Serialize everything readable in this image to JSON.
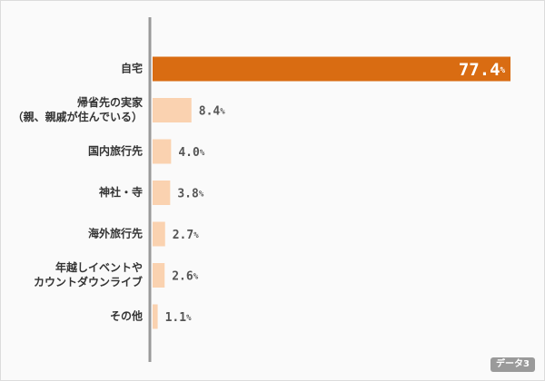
{
  "chart_data": {
    "type": "bar",
    "orientation": "horizontal",
    "categories": [
      [
        "自宅"
      ],
      [
        "帰省先の実家",
        "（親、親戚が住んでいる）"
      ],
      [
        "国内旅行先"
      ],
      [
        "神社・寺"
      ],
      [
        "海外旅行先"
      ],
      [
        "年越しイベントや",
        "カウントダウンライブ"
      ],
      [
        "その他"
      ]
    ],
    "values": [
      77.4,
      8.4,
      4.0,
      3.8,
      2.7,
      2.6,
      1.1
    ],
    "value_labels": [
      "77.4",
      "8.4",
      "4.0",
      "3.8",
      "2.7",
      "2.6",
      "1.1"
    ],
    "unit": "%",
    "xlim": [
      0,
      80
    ],
    "title": "",
    "xlabel": "",
    "ylabel": "",
    "grid": false,
    "highlight_index": 0,
    "colors": {
      "highlight": "#d96c12",
      "bar": "#fad2b0",
      "axis": "#999999"
    }
  },
  "badge": {
    "label": "データ3"
  }
}
